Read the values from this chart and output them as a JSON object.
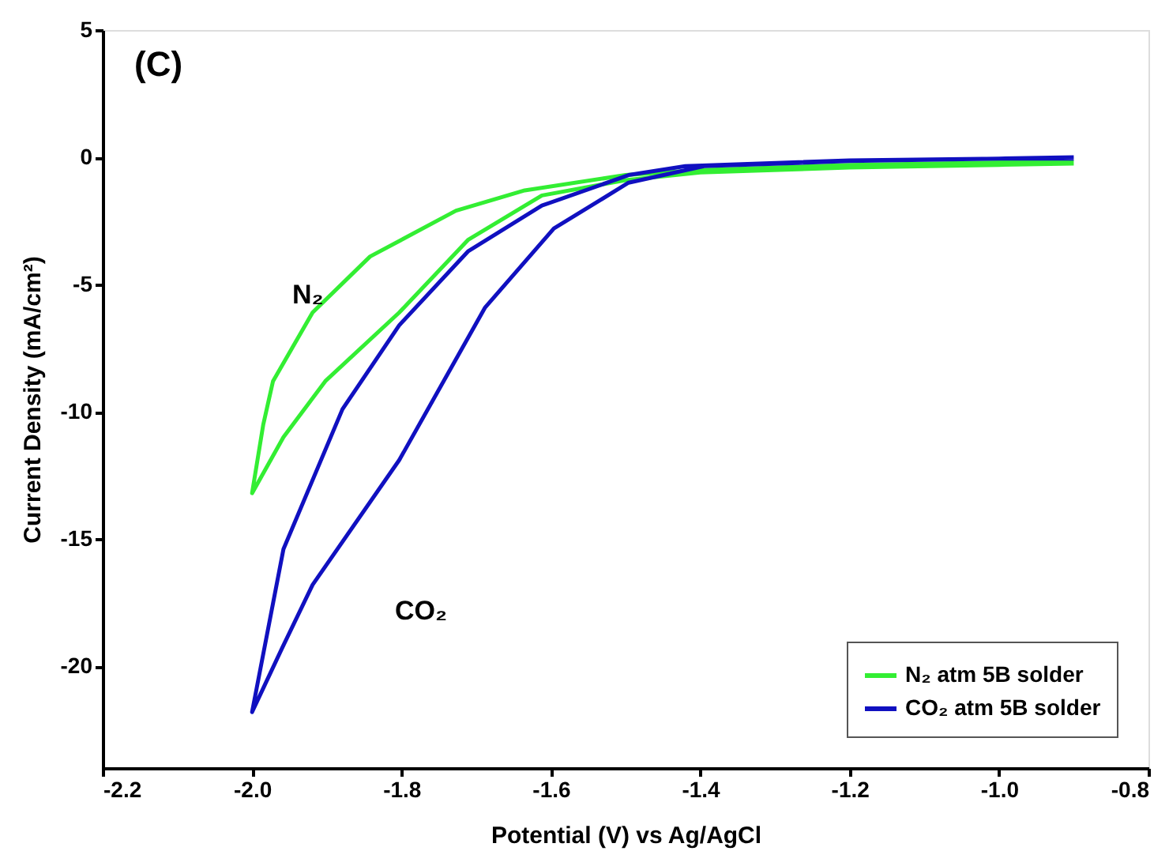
{
  "chart_data": {
    "type": "line",
    "xlabel": "Potential (V) vs Ag/AgCl",
    "ylabel": "Current Density (mA/cm²)",
    "xlim": [
      -2.2,
      -0.8
    ],
    "xticks": [
      -2.2,
      {
        "value": -2.0,
        "label": "-2.0"
      },
      -1.8,
      -1.6,
      -1.4,
      -1.2,
      {
        "value": -1.0,
        "label": "-1.0"
      },
      -0.8
    ],
    "ylim": [
      -24,
      5
    ],
    "yticks": [
      5,
      0,
      -5,
      -10,
      -15,
      -20
    ],
    "grid": false,
    "legend": "bottom right",
    "line_style": "solid",
    "marker": "none",
    "annotations": [
      "(C)",
      "N₂",
      "CO₂"
    ],
    "series": [
      {
        "name": "N₂ atm 5B solder",
        "color": "#33ee33",
        "x": [
          -0.9,
          -1.0,
          -1.2,
          -1.4,
          -1.5,
          -1.612,
          -1.711,
          -1.803,
          -1.902,
          -1.958,
          -2.0,
          -1.985,
          -1.972,
          -1.919,
          -1.842,
          -1.727,
          -1.635,
          -1.5,
          -1.4,
          -1.2,
          -1.0,
          -0.9
        ],
        "values": [
          -0.25,
          -0.3,
          -0.4,
          -0.6,
          -0.9,
          -1.5,
          -3.25,
          -6.1,
          -8.8,
          -11.0,
          -13.2,
          -10.5,
          -8.8,
          -6.1,
          -3.9,
          -2.1,
          -1.3,
          -0.7,
          -0.5,
          -0.3,
          -0.2,
          -0.2
        ]
      },
      {
        "name": "CO₂ atm 5B solder",
        "color": "#1010c0",
        "x": [
          -0.9,
          -1.0,
          -1.2,
          -1.395,
          -1.496,
          -1.596,
          -1.688,
          -1.803,
          -1.919,
          -1.96,
          -2.0,
          -1.958,
          -1.879,
          -1.803,
          -1.711,
          -1.612,
          -1.496,
          -1.42,
          -1.2,
          -1.0,
          -0.9
        ],
        "values": [
          0.0,
          -0.05,
          -0.15,
          -0.35,
          -1.0,
          -2.8,
          -5.9,
          -11.9,
          -16.8,
          -19.3,
          -21.8,
          -15.4,
          -9.9,
          -6.6,
          -3.7,
          -1.9,
          -0.7,
          -0.35,
          -0.12,
          -0.05,
          -0.05
        ]
      }
    ]
  }
}
